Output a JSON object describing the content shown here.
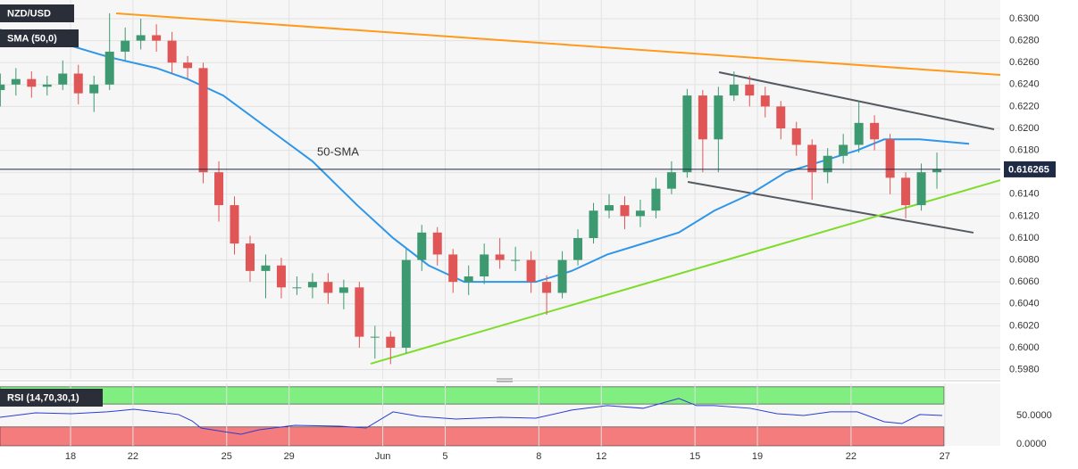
{
  "chart_data": {
    "type": "candlestick",
    "symbol": "NZD/USD",
    "up_color": "#3d9970",
    "down_color": "#e05555",
    "x": [
      -2.25,
      -1.75,
      -1.25,
      -0.75,
      -0.25,
      0.25,
      0.75,
      1.25,
      1.75,
      2.25,
      2.75,
      3.25,
      3.75,
      4.25,
      4.75,
      5.25,
      5.75,
      6.25,
      6.75,
      7.25,
      7.75,
      8.25,
      8.75,
      9.25,
      9.75,
      10.25,
      10.75,
      11.25,
      11.75,
      12.25,
      12.75,
      13.25,
      13.75,
      14.25,
      14.75,
      15.25,
      15.75,
      16.25,
      16.75,
      17.25,
      17.75,
      18.25,
      18.75,
      19.25,
      19.75,
      20.25,
      20.75,
      21.25,
      21.75,
      22.25,
      22.75,
      23.25,
      23.75,
      24.25,
      24.75,
      25.25,
      25.75,
      26.25,
      26.75,
      27.25,
      27.75
    ],
    "open": [
      0.6235,
      0.624,
      0.6245,
      0.6238,
      0.624,
      0.625,
      0.6232,
      0.624,
      0.627,
      0.628,
      0.6285,
      0.628,
      0.626,
      0.6255,
      0.616,
      0.613,
      0.6095,
      0.607,
      0.6075,
      0.6055,
      0.6055,
      0.606,
      0.605,
      0.6055,
      0.601,
      0.601,
      0.6,
      0.608,
      0.6105,
      0.6085,
      0.606,
      0.6065,
      0.6085,
      0.608,
      0.608,
      0.606,
      0.605,
      0.608,
      0.61,
      0.6125,
      0.613,
      0.612,
      0.6125,
      0.6145,
      0.616,
      0.623,
      0.619,
      0.623,
      0.624,
      0.623,
      0.622,
      0.62,
      0.6185,
      0.616,
      0.6175,
      0.6185,
      0.6205,
      0.619,
      0.6155,
      0.613,
      0.616
    ],
    "high": [
      0.625,
      0.6255,
      0.6252,
      0.6248,
      0.6262,
      0.6258,
      0.6248,
      0.6305,
      0.6292,
      0.63,
      0.6295,
      0.6288,
      0.6266,
      0.626,
      0.617,
      0.6138,
      0.6102,
      0.6085,
      0.6082,
      0.6065,
      0.6068,
      0.6068,
      0.6062,
      0.606,
      0.602,
      0.6015,
      0.609,
      0.6112,
      0.611,
      0.609,
      0.6075,
      0.6095,
      0.61,
      0.6092,
      0.6088,
      0.6066,
      0.6088,
      0.6108,
      0.6132,
      0.614,
      0.6138,
      0.6135,
      0.6155,
      0.617,
      0.6236,
      0.6235,
      0.6238,
      0.6252,
      0.6248,
      0.6238,
      0.6225,
      0.6206,
      0.619,
      0.6182,
      0.6195,
      0.6225,
      0.6212,
      0.6195,
      0.616,
      0.6168,
      0.6178
    ],
    "low": [
      0.622,
      0.623,
      0.6228,
      0.623,
      0.6235,
      0.6222,
      0.6215,
      0.6235,
      0.6262,
      0.6272,
      0.627,
      0.625,
      0.6245,
      0.615,
      0.6115,
      0.6085,
      0.606,
      0.6045,
      0.6045,
      0.6048,
      0.6045,
      0.604,
      0.6035,
      0.6,
      0.599,
      0.5985,
      0.5995,
      0.607,
      0.6075,
      0.605,
      0.6048,
      0.6058,
      0.6072,
      0.607,
      0.605,
      0.603,
      0.6045,
      0.6075,
      0.6095,
      0.6118,
      0.6108,
      0.611,
      0.6118,
      0.614,
      0.6155,
      0.616,
      0.616,
      0.6225,
      0.622,
      0.621,
      0.619,
      0.6175,
      0.6135,
      0.615,
      0.6168,
      0.6178,
      0.618,
      0.614,
      0.6118,
      0.6125,
      0.6145
    ],
    "close": [
      0.624,
      0.6245,
      0.6238,
      0.624,
      0.625,
      0.6232,
      0.624,
      0.627,
      0.628,
      0.6285,
      0.628,
      0.626,
      0.6255,
      0.616,
      0.613,
      0.6095,
      0.607,
      0.6075,
      0.6055,
      0.6055,
      0.606,
      0.605,
      0.6055,
      0.601,
      0.601,
      0.6,
      0.608,
      0.6105,
      0.6085,
      0.606,
      0.6065,
      0.6085,
      0.608,
      0.608,
      0.606,
      0.605,
      0.608,
      0.61,
      0.6125,
      0.613,
      0.612,
      0.6125,
      0.6145,
      0.616,
      0.623,
      0.619,
      0.623,
      0.624,
      0.623,
      0.622,
      0.62,
      0.6185,
      0.616,
      0.6175,
      0.6185,
      0.6205,
      0.619,
      0.6155,
      0.613,
      0.616,
      0.616265
    ],
    "xlim": [
      -2.26,
      29.78
    ],
    "xticks": [
      {
        "value": 0,
        "label": "18"
      },
      {
        "value": 2,
        "label": "22"
      },
      {
        "value": 5,
        "label": "25"
      },
      {
        "value": 7,
        "label": "29"
      },
      {
        "value": 10,
        "label": "Jun"
      },
      {
        "value": 12,
        "label": "5"
      },
      {
        "value": 15,
        "label": "8"
      },
      {
        "value": 17,
        "label": "12"
      },
      {
        "value": 20,
        "label": "15"
      },
      {
        "value": 22,
        "label": "19"
      },
      {
        "value": 25,
        "label": "22"
      },
      {
        "value": 28,
        "label": "27"
      }
    ],
    "ylim": [
      0.59715,
      0.63171
    ],
    "yticks": [
      {
        "value": 0.598,
        "label": "0.5980"
      },
      {
        "value": 0.6,
        "label": "0.6000"
      },
      {
        "value": 0.602,
        "label": "0.6020"
      },
      {
        "value": 0.604,
        "label": "0.6040"
      },
      {
        "value": 0.606,
        "label": "0.6060"
      },
      {
        "value": 0.608,
        "label": "0.6080"
      },
      {
        "value": 0.61,
        "label": "0.6100"
      },
      {
        "value": 0.612,
        "label": "0.6120"
      },
      {
        "value": 0.614,
        "label": "0.6140"
      },
      {
        "value": 0.616,
        "label": "0.6160"
      },
      {
        "value": 0.618,
        "label": "0.6180"
      },
      {
        "value": 0.62,
        "label": "0.6200"
      },
      {
        "value": 0.622,
        "label": "0.6220"
      },
      {
        "value": 0.624,
        "label": "0.6240"
      },
      {
        "value": 0.626,
        "label": "0.6260"
      },
      {
        "value": 0.628,
        "label": "0.6280"
      },
      {
        "value": 0.63,
        "label": "0.6300"
      }
    ],
    "grid": true,
    "last_price": 0.616265,
    "sma": {
      "name": "SMA (50,0)",
      "label": "50-SMA",
      "color": "#2f96e8",
      "x": [
        -2.26,
        -0.54,
        1.23,
        2.75,
        3.75,
        4.89,
        6.32,
        7.75,
        9.18,
        10.33,
        11.47,
        12.61,
        13.76,
        14.9,
        16.05,
        17.19,
        18.34,
        19.48,
        20.62,
        21.77,
        22.91,
        24.06,
        25.2,
        26.06,
        27.2,
        28.78
      ],
      "values": [
        0.629,
        0.628,
        0.6265,
        0.6255,
        0.6245,
        0.623,
        0.62,
        0.617,
        0.613,
        0.61,
        0.6075,
        0.606,
        0.606,
        0.606,
        0.607,
        0.6085,
        0.6095,
        0.6105,
        0.6125,
        0.614,
        0.616,
        0.617,
        0.618,
        0.619,
        0.619,
        0.6186
      ]
    },
    "trendlines": [
      {
        "color": "#ff9a1a",
        "x": [
          1.46,
          29.78
        ],
        "values": [
          0.63049,
          0.62488
        ]
      },
      {
        "color": "#555a60",
        "x": [
          20.77,
          29.58
        ],
        "values": [
          0.62512,
          0.61992
        ]
      },
      {
        "color": "#555a60",
        "x": [
          19.77,
          28.92
        ],
        "values": [
          0.61512,
          0.61049
        ]
      },
      {
        "color": "#7ddc2a",
        "x": [
          9.61,
          29.78
        ],
        "values": [
          0.59854,
          0.61528
        ]
      }
    ],
    "rsi": {
      "name": "RSI (14,70,30,1)",
      "color": "#2b3bd6",
      "x": [
        -2.26,
        -1.12,
        0.03,
        1.17,
        2.03,
        2.75,
        3.46,
        3.89,
        4.18,
        4.89,
        5.46,
        6.04,
        7.18,
        8.61,
        9.47,
        10.33,
        11.18,
        12.33,
        13.76,
        14.9,
        16.05,
        17.19,
        18.34,
        19.48,
        20.05,
        20.62,
        21.77,
        22.63,
        23.48,
        24.34,
        25.2,
        26.06,
        26.63,
        27.2,
        27.92
      ],
      "values": [
        46.9,
        54.7,
        53.1,
        56.3,
        60.9,
        56.3,
        51.6,
        40.6,
        28.1,
        21.9,
        17.2,
        25.0,
        32.8,
        31.3,
        28.1,
        56.3,
        48.4,
        43.8,
        46.9,
        45.3,
        59.4,
        67.2,
        62.5,
        79.7,
        67.2,
        67.2,
        62.5,
        53.1,
        50.0,
        56.3,
        56.3,
        39.1,
        35.9,
        51.6,
        50.0
      ],
      "ylim": [
        -3,
        106
      ],
      "yticks": [
        {
          "value": 50,
          "label": "50.0000"
        },
        {
          "value": 0,
          "label": "0.0000"
        }
      ],
      "bands": [
        {
          "from": 70,
          "to": 100,
          "color": "#80ee80"
        },
        {
          "from": -3,
          "to": 30,
          "color": "#f47c7c"
        }
      ]
    }
  }
}
